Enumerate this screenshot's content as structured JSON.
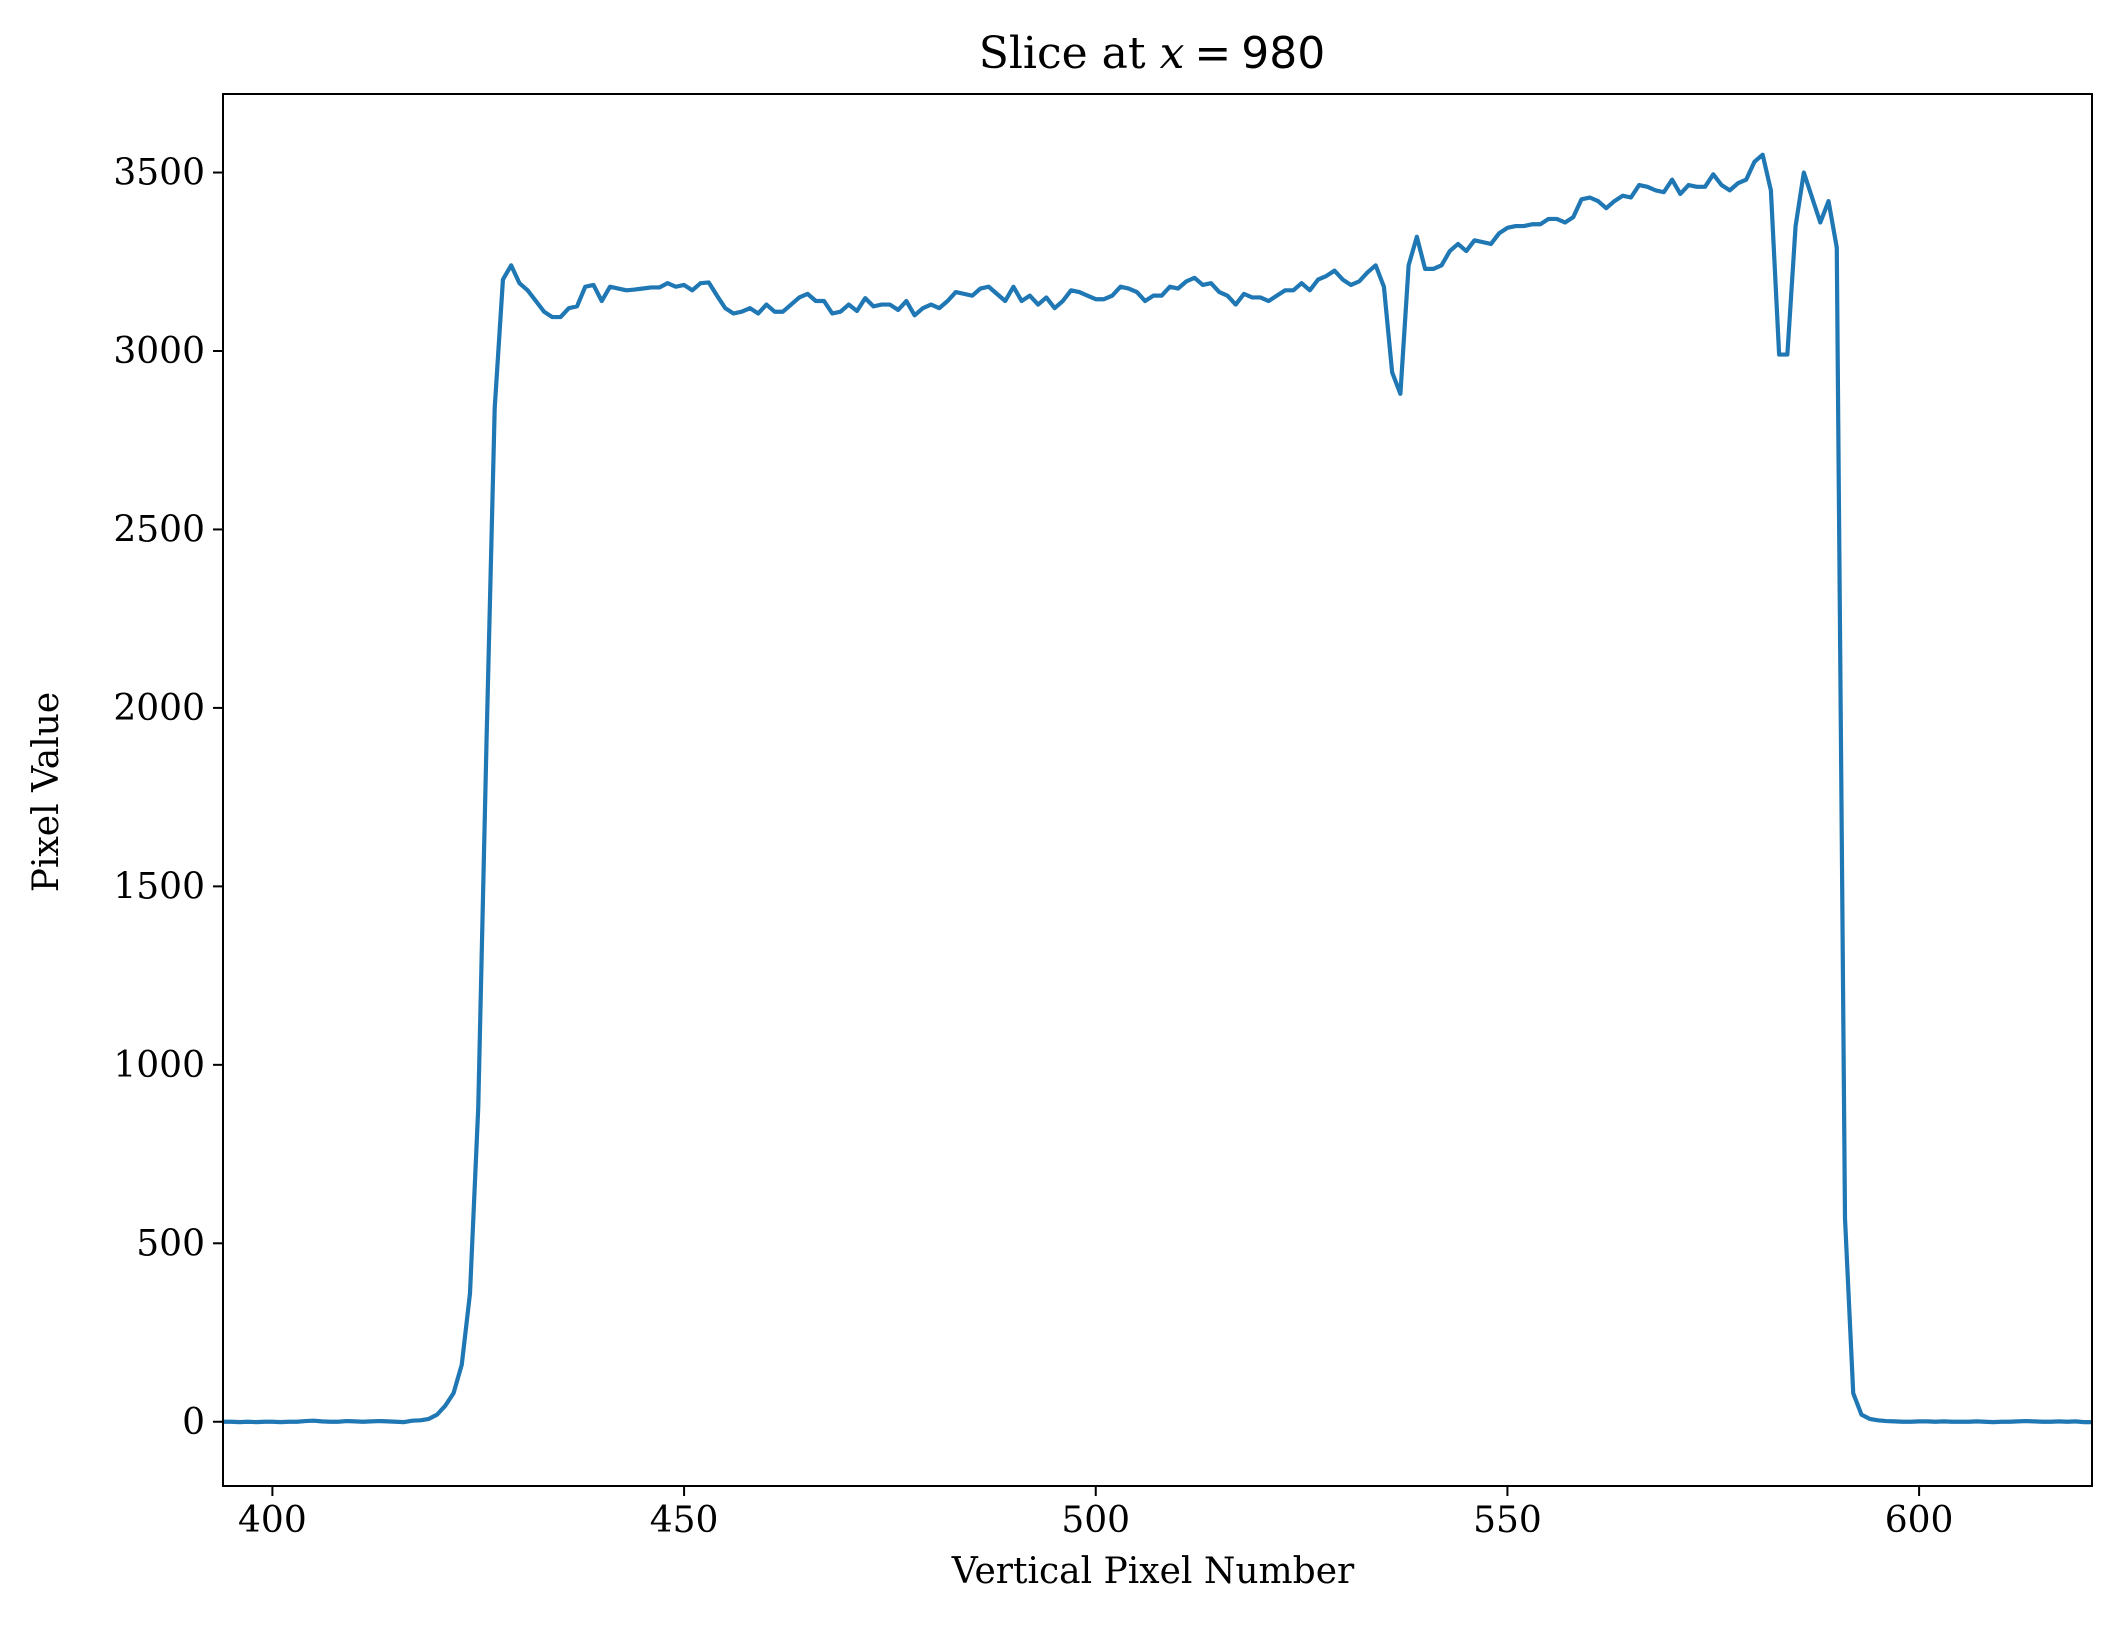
{
  "chart_data": {
    "type": "line",
    "title": "Slice at x = 980",
    "title_parts": {
      "prefix": "Slice at ",
      "variable": "x",
      "operator": "=",
      "value": "980"
    },
    "xlabel": "Vertical Pixel Number",
    "ylabel": "Pixel Value",
    "xlim": [
      394,
      621
    ],
    "ylim": [
      -180,
      3720
    ],
    "xticks": [
      400,
      450,
      500,
      550,
      600
    ],
    "yticks": [
      0,
      500,
      1000,
      1500,
      2000,
      2500,
      3000,
      3500
    ],
    "xtick_labels": [
      "400",
      "450",
      "500",
      "550",
      "600"
    ],
    "ytick_labels": [
      "0",
      "500",
      "1000",
      "1500",
      "2000",
      "2500",
      "3000",
      "3500"
    ],
    "grid": false,
    "legend": "none",
    "series": [
      {
        "color": "#1f77b4",
        "x": [
          394,
          395,
          396,
          397,
          398,
          399,
          400,
          401,
          402,
          403,
          404,
          405,
          406,
          407,
          408,
          409,
          410,
          411,
          412,
          413,
          414,
          415,
          416,
          417,
          418,
          419,
          420,
          421,
          422,
          423,
          424,
          425,
          426,
          427,
          428,
          429,
          430,
          431,
          432,
          433,
          434,
          435,
          436,
          437,
          438,
          439,
          440,
          441,
          442,
          443,
          444,
          445,
          446,
          447,
          448,
          449,
          450,
          451,
          452,
          453,
          454,
          455,
          456,
          457,
          458,
          459,
          460,
          461,
          462,
          463,
          464,
          465,
          466,
          467,
          468,
          469,
          470,
          471,
          472,
          473,
          474,
          475,
          476,
          477,
          478,
          479,
          480,
          481,
          482,
          483,
          484,
          485,
          486,
          487,
          488,
          489,
          490,
          491,
          492,
          493,
          494,
          495,
          496,
          497,
          498,
          499,
          500,
          501,
          502,
          503,
          504,
          505,
          506,
          507,
          508,
          509,
          510,
          511,
          512,
          513,
          514,
          515,
          516,
          517,
          518,
          519,
          520,
          521,
          522,
          523,
          524,
          525,
          526,
          527,
          528,
          529,
          530,
          531,
          532,
          533,
          534,
          535,
          536,
          537,
          538,
          539,
          540,
          541,
          542,
          543,
          544,
          545,
          546,
          547,
          548,
          549,
          550,
          551,
          552,
          553,
          554,
          555,
          556,
          557,
          558,
          559,
          560,
          561,
          562,
          563,
          564,
          565,
          566,
          567,
          568,
          569,
          570,
          571,
          572,
          573,
          574,
          575,
          576,
          577,
          578,
          579,
          580,
          581,
          582,
          583,
          584,
          585,
          586,
          587,
          588,
          589,
          590,
          591,
          592,
          593,
          594,
          595,
          596,
          597,
          598,
          599,
          600,
          601,
          602,
          603,
          604,
          605,
          606,
          607,
          608,
          609,
          610,
          611,
          612,
          613,
          614,
          615,
          616,
          617,
          618,
          619,
          620,
          621
        ],
        "y": [
          0,
          0,
          -1,
          0,
          -1,
          0,
          0,
          -1,
          0,
          0,
          2,
          3,
          1,
          0,
          0,
          2,
          1,
          0,
          1,
          2,
          1,
          0,
          -1,
          3,
          4,
          8,
          20,
          45,
          80,
          160,
          360,
          880,
          1900,
          2840,
          3200,
          3240,
          3190,
          3170,
          3140,
          3110,
          3095,
          3095,
          3120,
          3125,
          3180,
          3185,
          3140,
          3180,
          3175,
          3170,
          3172,
          3175,
          3178,
          3178,
          3190,
          3180,
          3185,
          3170,
          3190,
          3192,
          3155,
          3120,
          3105,
          3110,
          3120,
          3105,
          3130,
          3110,
          3110,
          3130,
          3150,
          3160,
          3140,
          3140,
          3105,
          3110,
          3130,
          3112,
          3148,
          3125,
          3130,
          3130,
          3115,
          3140,
          3100,
          3120,
          3130,
          3120,
          3140,
          3165,
          3160,
          3155,
          3175,
          3180,
          3160,
          3140,
          3180,
          3140,
          3155,
          3130,
          3150,
          3120,
          3140,
          3170,
          3165,
          3155,
          3145,
          3145,
          3155,
          3180,
          3175,
          3165,
          3140,
          3155,
          3155,
          3180,
          3175,
          3195,
          3205,
          3185,
          3190,
          3165,
          3155,
          3130,
          3160,
          3150,
          3150,
          3140,
          3155,
          3170,
          3170,
          3190,
          3170,
          3200,
          3210,
          3225,
          3200,
          3185,
          3195,
          3220,
          3240,
          3180,
          2940,
          2880,
          3240,
          3320,
          3230,
          3230,
          3240,
          3280,
          3300,
          3280,
          3310,
          3305,
          3300,
          3330,
          3345,
          3350,
          3350,
          3355,
          3355,
          3370,
          3370,
          3360,
          3375,
          3425,
          3430,
          3420,
          3400,
          3420,
          3435,
          3430,
          3465,
          3460,
          3450,
          3445,
          3480,
          3440,
          3465,
          3460,
          3460,
          3495,
          3465,
          3450,
          3470,
          3480,
          3530,
          3550,
          3450,
          2990,
          2990,
          3350,
          3500,
          3430,
          3360,
          3420,
          3290,
          570,
          80,
          20,
          8,
          4,
          2,
          1,
          0,
          0,
          1,
          1,
          0,
          1,
          0,
          0,
          0,
          1,
          0,
          -1,
          0,
          0,
          1,
          2,
          1,
          0,
          0,
          1,
          0,
          1,
          -1,
          -1
        ]
      }
    ]
  }
}
